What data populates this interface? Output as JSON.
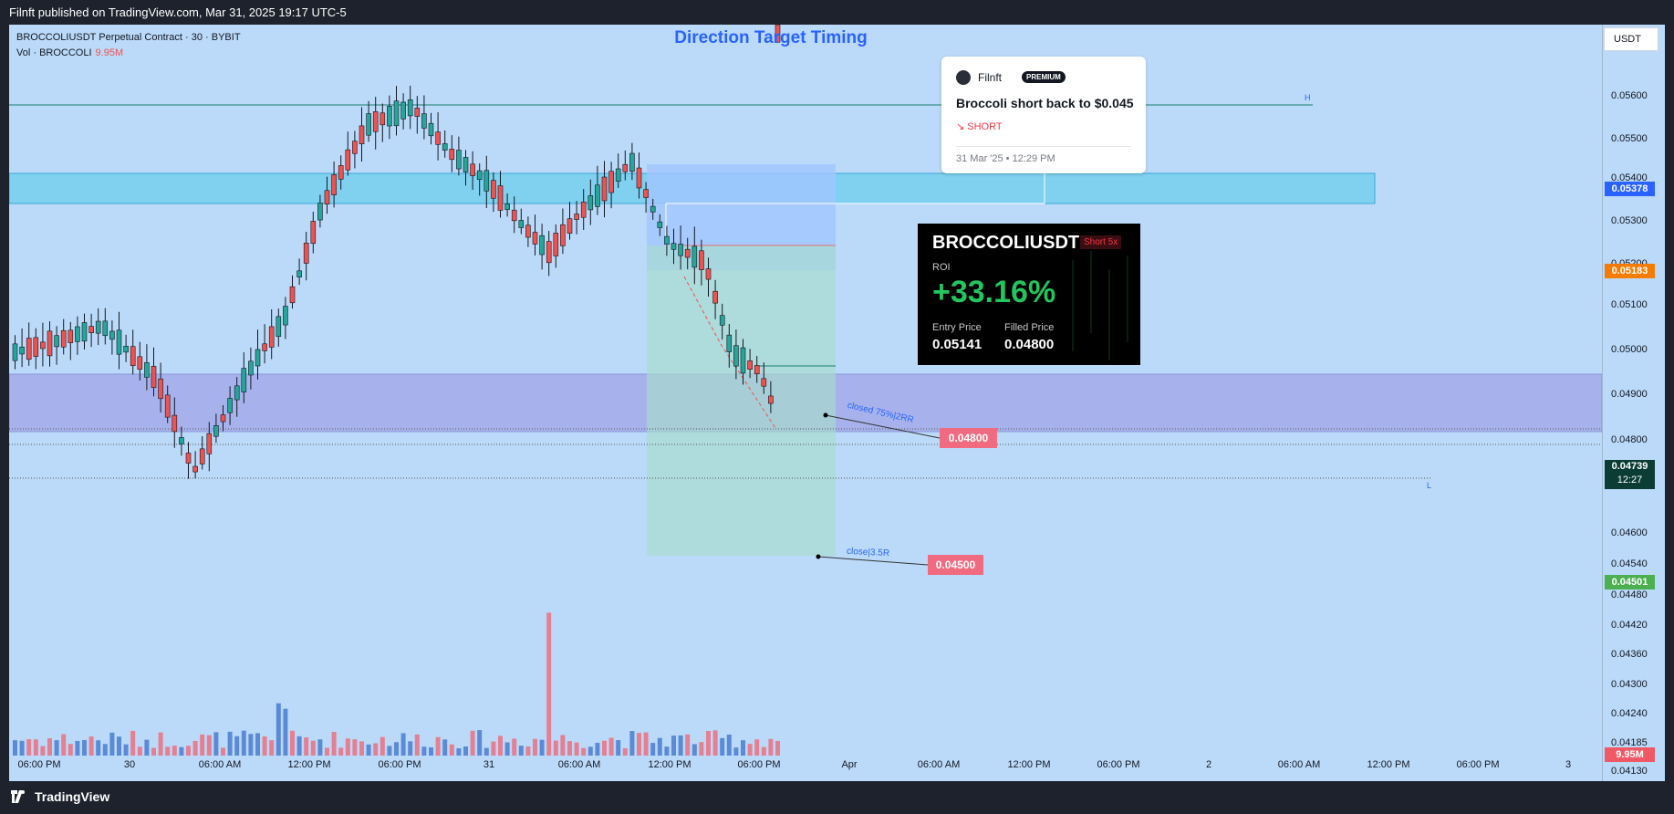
{
  "window": {
    "published_text": "Filnft published on TradingView.com, Mar 31, 2025 19:17 UTC-5"
  },
  "legend": {
    "line1": "BROCCOLIUSDT Perpetual Contract · 30 · BYBIT",
    "vol_label": "Vol · BROCCOLI",
    "vol_value": "9.95M"
  },
  "chart_title": "Direction Target Timing",
  "idea_card": {
    "author": "Filnft",
    "badge": "PREMIUM",
    "title": "Broccoli short back to $0.045",
    "direction": "↘ SHORT",
    "date": "31 Mar '25 • 12:29 PM"
  },
  "roi_card": {
    "symbol": "BROCCOLIUSDT",
    "badge": "Short 5x",
    "roi_label": "ROI",
    "roi_value": "+33.16%",
    "entry_label": "Entry Price",
    "entry_value": "0.05141",
    "filled_label": "Filled Price",
    "filled_value": "0.04800"
  },
  "annotations": {
    "closed_text": "closed 75%|2RR",
    "close_text": "close|3.5R",
    "tp1_price": "0.04800",
    "tp2_price": "0.04500",
    "high_marker": "H",
    "low_marker": "L"
  },
  "price_axis": {
    "currency": "USDT",
    "ticks": [
      "0.05600",
      "0.05500",
      "0.05400",
      "0.05300",
      "0.05200",
      "0.05100",
      "0.05000",
      "0.04900",
      "0.04800",
      "0.04600",
      "0.04540",
      "0.04480",
      "0.04420",
      "0.04360",
      "0.04300",
      "0.04240",
      "0.04185",
      "0.04130"
    ],
    "flags": [
      {
        "value": "0.05378",
        "color": "#2962ff"
      },
      {
        "value": "0.05183",
        "color": "#f57c00"
      },
      {
        "value": "0.04739",
        "color": "#0b3d35",
        "sub": "12:27"
      },
      {
        "value": "0.04501",
        "color": "#4caf50"
      },
      {
        "value": "9.95M",
        "color": "#f05866"
      }
    ]
  },
  "time_axis": {
    "labels": [
      "06:00 PM",
      "30",
      "06:00 AM",
      "12:00 PM",
      "06:00 PM",
      "31",
      "06:00 AM",
      "12:00 PM",
      "06:00 PM",
      "Apr",
      "06:00 AM",
      "12:00 PM",
      "06:00 PM",
      "2",
      "06:00 AM",
      "12:00 PM",
      "06:00 PM",
      "3"
    ]
  },
  "footer": {
    "brand": "TradingView"
  },
  "colors": {
    "up": "#26a69a",
    "down": "#ef5350",
    "bg": "#bbdaf9",
    "accent": "#2962ff"
  }
}
